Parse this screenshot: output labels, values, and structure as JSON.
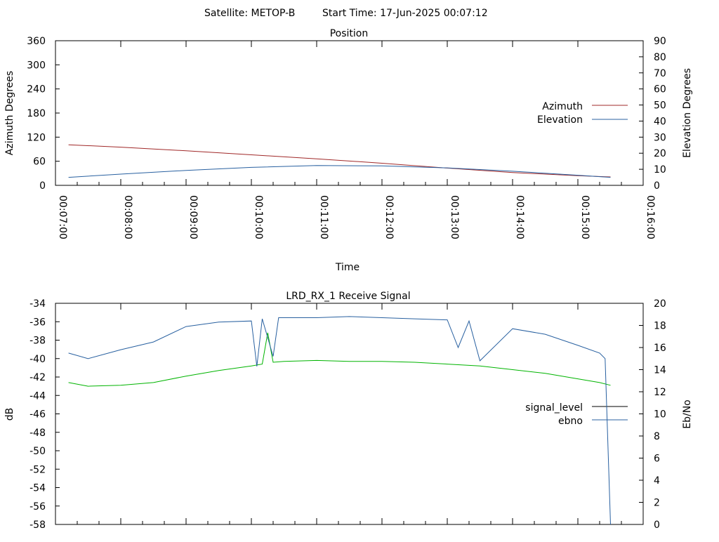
{
  "header": {
    "satellite": "Satellite: METOP-B",
    "start_time": "Start Time: 17-Jun-2025 00:07:12"
  },
  "chart_data": [
    {
      "type": "line",
      "title": "Position",
      "xlabel": "Time",
      "ylabel": "Azimuth Degrees",
      "y2label": "Elevation Degrees",
      "xticks": [
        "00:07:00",
        "00:08:00",
        "00:09:00",
        "00:10:00",
        "00:11:00",
        "00:12:00",
        "00:13:00",
        "00:14:00",
        "00:15:00",
        "00:16:00"
      ],
      "yticks": [
        "0",
        "60",
        "120",
        "180",
        "240",
        "300",
        "360"
      ],
      "y2ticks": [
        "0",
        "10",
        "20",
        "30",
        "40",
        "50",
        "60",
        "70",
        "80",
        "90"
      ],
      "xlim": [
        "00:07:00",
        "00:16:00"
      ],
      "ylim": [
        0,
        360
      ],
      "y2lim": [
        0,
        90
      ],
      "legend_position": "right",
      "grid": false,
      "series": [
        {
          "name": "Azimuth",
          "axis": "left",
          "color": "#a02828",
          "x": [
            "00:07:12",
            "00:08:00",
            "00:09:00",
            "00:10:00",
            "00:11:00",
            "00:12:00",
            "00:13:00",
            "00:14:00",
            "00:15:00",
            "00:15:30"
          ],
          "values": [
            101,
            95,
            86,
            76,
            66,
            55,
            43,
            32,
            24,
            21
          ]
        },
        {
          "name": "Elevation",
          "axis": "right",
          "color": "#2860a0",
          "x": [
            "00:07:12",
            "00:08:00",
            "00:09:00",
            "00:10:00",
            "00:11:00",
            "00:12:00",
            "00:13:00",
            "00:14:00",
            "00:15:00",
            "00:15:30"
          ],
          "values": [
            5,
            7,
            9.3,
            11.2,
            12.3,
            12.1,
            10.9,
            8.8,
            6.3,
            5
          ]
        }
      ]
    },
    {
      "type": "line",
      "title": "LRD_RX_1 Receive Signal",
      "ylabel": "dB",
      "y2label": "Eb/No",
      "yticks": [
        "-34",
        "-36",
        "-38",
        "-40",
        "-42",
        "-44",
        "-46",
        "-48",
        "-50",
        "-52",
        "-54",
        "-56",
        "-58"
      ],
      "y2ticks": [
        "20",
        "18",
        "16",
        "14",
        "12",
        "10",
        "8",
        "6",
        "4",
        "2",
        "0"
      ],
      "xlim": [
        "00:07:00",
        "00:16:00"
      ],
      "ylim": [
        -58,
        -34
      ],
      "y2lim": [
        0,
        20
      ],
      "legend_position": "right",
      "grid": false,
      "series": [
        {
          "name": "signal_level",
          "axis": "left",
          "color": "#00b400",
          "x": [
            "00:07:12",
            "00:07:30",
            "00:08:00",
            "00:08:30",
            "00:09:00",
            "00:09:30",
            "00:10:00",
            "00:10:10",
            "00:10:15",
            "00:10:20",
            "00:10:30",
            "00:11:00",
            "00:11:30",
            "00:12:00",
            "00:12:30",
            "00:13:00",
            "00:13:30",
            "00:14:00",
            "00:14:30",
            "00:15:00",
            "00:15:20",
            "00:15:30"
          ],
          "values": [
            -42.6,
            -43.0,
            -42.9,
            -42.6,
            -41.9,
            -41.3,
            -40.8,
            -40.6,
            -37.2,
            -40.4,
            -40.3,
            -40.2,
            -40.3,
            -40.3,
            -40.4,
            -40.6,
            -40.8,
            -41.2,
            -41.6,
            -42.2,
            -42.6,
            -42.9
          ]
        },
        {
          "name": "ebno",
          "axis": "right",
          "color": "#2860a0",
          "x": [
            "00:07:12",
            "00:07:30",
            "00:08:00",
            "00:08:30",
            "00:09:00",
            "00:09:30",
            "00:10:00",
            "00:10:05",
            "00:10:10",
            "00:10:20",
            "00:10:25",
            "00:10:40",
            "00:11:00",
            "00:11:30",
            "00:12:00",
            "00:12:30",
            "00:13:00",
            "00:13:10",
            "00:13:20",
            "00:13:30",
            "00:14:00",
            "00:14:30",
            "00:15:00",
            "00:15:20",
            "00:15:25",
            "00:15:30"
          ],
          "values": [
            15.5,
            15.0,
            15.8,
            16.5,
            17.9,
            18.3,
            18.4,
            14.3,
            18.6,
            15.2,
            18.7,
            18.7,
            18.7,
            18.8,
            18.7,
            18.6,
            18.5,
            16.0,
            18.4,
            14.8,
            17.7,
            17.2,
            16.2,
            15.5,
            15.0,
            0
          ]
        }
      ]
    }
  ]
}
